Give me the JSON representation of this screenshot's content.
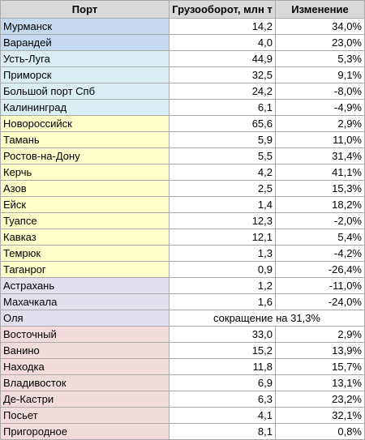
{
  "headers": [
    "Порт",
    "Грузооборот, млн т",
    "Изменение"
  ],
  "group_colors": {
    "blue": "#c5d9f1",
    "cyan": "#daeef3",
    "yellow": "#ffffcc",
    "lavender": "#e4dfec",
    "pink": "#f2dcdb"
  },
  "rows": [
    {
      "port": "Мурманск",
      "volume": "14,2",
      "change": "34,0%",
      "group": "g-blue"
    },
    {
      "port": "Варандей",
      "volume": "4,0",
      "change": "23,0%",
      "group": "g-blue"
    },
    {
      "port": "Усть-Луга",
      "volume": "44,9",
      "change": "5,3%",
      "group": "g-cyan"
    },
    {
      "port": "Приморск",
      "volume": "32,5",
      "change": "9,1%",
      "group": "g-cyan"
    },
    {
      "port": "Большой порт Спб",
      "volume": "24,2",
      "change": "-8,0%",
      "group": "g-cyan"
    },
    {
      "port": "Калининград",
      "volume": "6,1",
      "change": "-4,9%",
      "group": "g-cyan"
    },
    {
      "port": "Новороссийск",
      "volume": "65,6",
      "change": "2,9%",
      "group": "g-yellow"
    },
    {
      "port": "Тамань",
      "volume": "5,9",
      "change": "11,0%",
      "group": "g-yellow"
    },
    {
      "port": "Ростов-на-Дону",
      "volume": "5,5",
      "change": "31,4%",
      "group": "g-yellow"
    },
    {
      "port": "Керчь",
      "volume": "4,2",
      "change": "41,1%",
      "group": "g-yellow"
    },
    {
      "port": "Азов",
      "volume": "2,5",
      "change": "15,3%",
      "group": "g-yellow"
    },
    {
      "port": "Ейск",
      "volume": "1,4",
      "change": "18,2%",
      "group": "g-yellow"
    },
    {
      "port": "Туапсе",
      "volume": "12,3",
      "change": "-2,0%",
      "group": "g-yellow"
    },
    {
      "port": "Кавказ",
      "volume": "12,1",
      "change": "5,4%",
      "group": "g-yellow"
    },
    {
      "port": "Темрюк",
      "volume": "1,3",
      "change": "-4,2%",
      "group": "g-yellow"
    },
    {
      "port": "Таганрог",
      "volume": "0,9",
      "change": "-26,4%",
      "group": "g-yellow"
    },
    {
      "port": "Астрахань",
      "volume": "1,2",
      "change": "-11,0%",
      "group": "g-lav"
    },
    {
      "port": "Махачкала",
      "volume": "1,6",
      "change": "-24,0%",
      "group": "g-lav"
    },
    {
      "port": "Оля",
      "merged": "сокращение на 31,3%",
      "group": "g-lav"
    },
    {
      "port": "Восточный",
      "volume": "33,0",
      "change": "2,9%",
      "group": "g-pink"
    },
    {
      "port": "Ванино",
      "volume": "15,2",
      "change": "13,9%",
      "group": "g-pink"
    },
    {
      "port": "Находка",
      "volume": "11,8",
      "change": "15,7%",
      "group": "g-pink"
    },
    {
      "port": "Владивосток",
      "volume": "6,9",
      "change": "13,1%",
      "group": "g-pink"
    },
    {
      "port": "Де-Кастри",
      "volume": "6,3",
      "change": "23,2%",
      "group": "g-pink"
    },
    {
      "port": "Посьет",
      "volume": "4,1",
      "change": "32,1%",
      "group": "g-pink"
    },
    {
      "port": "Пригородное",
      "volume": "8,1",
      "change": "0,8%",
      "group": "g-pink"
    }
  ]
}
